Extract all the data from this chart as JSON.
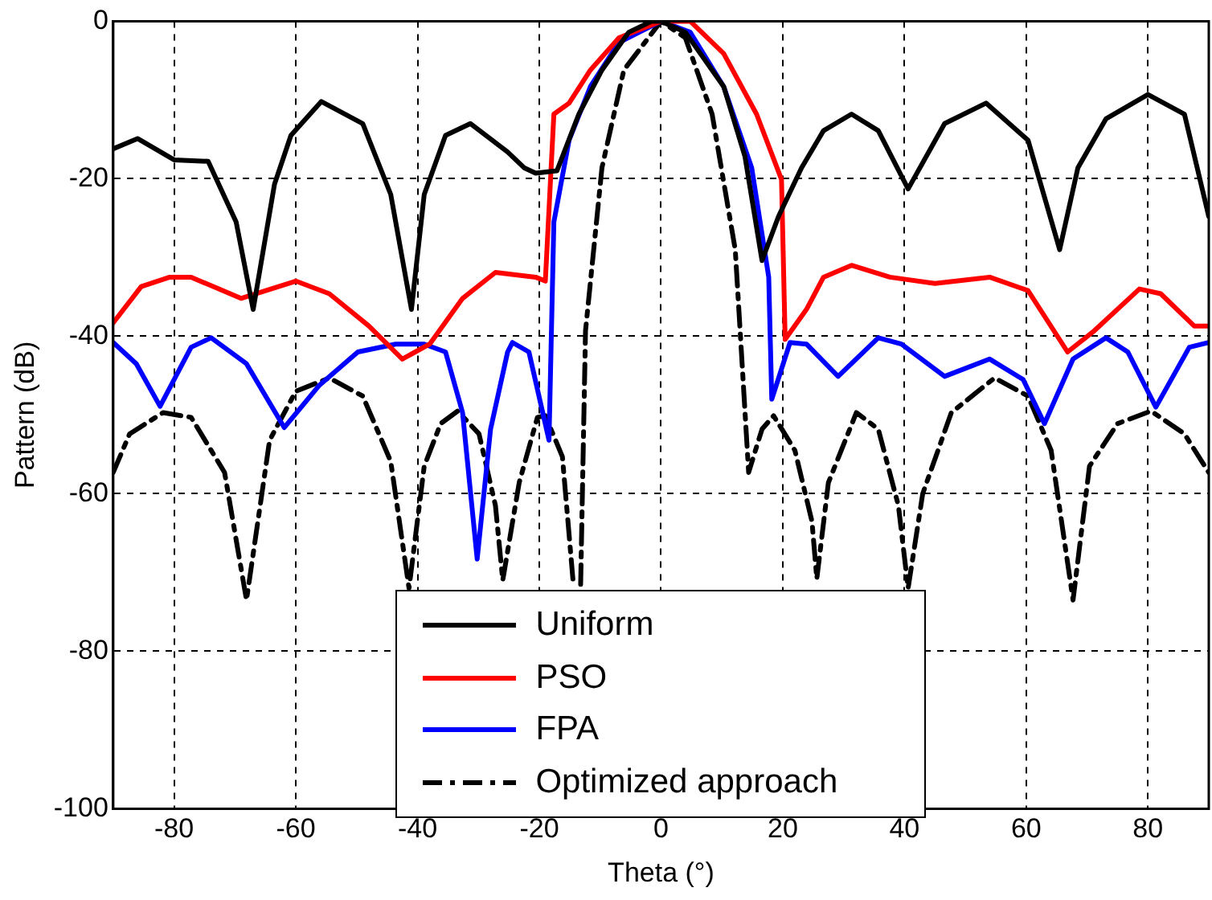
{
  "chart_data": {
    "type": "line",
    "xlabel": "Theta (°)",
    "ylabel": "Pattern (dB)",
    "xlim": [
      -90,
      90
    ],
    "xticks": [
      -80,
      -60,
      -40,
      -20,
      0,
      20,
      40,
      60,
      80
    ],
    "ylim": [
      -100,
      0
    ],
    "yticks": [
      -100,
      -80,
      -60,
      -40,
      -20,
      0
    ],
    "grid": true,
    "legend": "bottom",
    "marker": "none",
    "series": [
      {
        "name": "Uniform",
        "color": "#000000",
        "line_style": "solid",
        "x": [
          -90,
          -86,
          -80,
          -74.4,
          -69.8,
          -67,
          -63.5,
          -60.8,
          -55.8,
          -49,
          -44.4,
          -41,
          -38.9,
          -35.4,
          -31.3,
          -25.2,
          -22.5,
          -20.6,
          -17.1,
          -13.5,
          -9.7,
          -5.3,
          -1.5,
          0,
          4,
          10.3,
          13.8,
          16.6,
          19.3,
          23.1,
          26.7,
          31.3,
          35.7,
          40.6,
          46.6,
          53.4,
          60.3,
          65.5,
          68.5,
          73.1,
          80,
          86,
          90
        ],
        "values": [
          -16.2,
          -14.9,
          -17.6,
          -17.8,
          -25.5,
          -36.6,
          -20.7,
          -14.5,
          -10.2,
          -13,
          -22,
          -36.6,
          -22,
          -14.5,
          -13,
          -16.6,
          -18.6,
          -19.3,
          -19,
          -11.8,
          -6.2,
          -1.4,
          0,
          0,
          -1.4,
          -8.3,
          -17.2,
          -30.4,
          -24.8,
          -18.6,
          -13.9,
          -11.8,
          -13.9,
          -21.3,
          -13,
          -10.4,
          -15.1,
          -29,
          -18.6,
          -12.4,
          -9.3,
          -11.8,
          -24.8
        ]
      },
      {
        "name": "PSO",
        "color": "#ff0000",
        "line_style": "solid",
        "x": [
          -90,
          -85.4,
          -80.7,
          -77.2,
          -69,
          -60,
          -54.5,
          -48,
          -42.5,
          -38,
          -32.6,
          -27.2,
          -20.6,
          -19,
          -17.6,
          -15.1,
          -11.6,
          -6.9,
          0,
          4.8,
          10.3,
          15.7,
          19.8,
          20.4,
          23.9,
          26.7,
          31.3,
          37.6,
          45,
          54,
          60.3,
          66.8,
          71.2,
          78.6,
          82.1,
          87.6,
          90
        ],
        "values": [
          -38.3,
          -33.7,
          -32.5,
          -32.5,
          -35.2,
          -33,
          -34.6,
          -38.7,
          -42.9,
          -41,
          -35.2,
          -31.9,
          -32.5,
          -33,
          -11.8,
          -10.4,
          -6.2,
          -2.1,
          0,
          0,
          -4.1,
          -11.8,
          -20.1,
          -40.4,
          -36.6,
          -32.5,
          -31,
          -32.5,
          -33.3,
          -32.5,
          -34.2,
          -42,
          -39.3,
          -34,
          -34.6,
          -38.7,
          -38.7
        ]
      },
      {
        "name": "FPA",
        "color": "#0000ff",
        "line_style": "solid",
        "x": [
          -90,
          -86.2,
          -82.3,
          -77.2,
          -73.9,
          -68.1,
          -61.9,
          -56.1,
          -49.8,
          -43.6,
          -38.9,
          -35.4,
          -32.6,
          -30.2,
          -28,
          -25.2,
          -24.4,
          -21.7,
          -18.4,
          -17.6,
          -15.1,
          -11.6,
          -6.9,
          0,
          4.8,
          10.3,
          14.9,
          17.7,
          18.2,
          21.2,
          23.9,
          29.1,
          35.7,
          39.5,
          46.6,
          54,
          59.5,
          63,
          67.7,
          73.1,
          76.7,
          81.3,
          86.8,
          90
        ],
        "values": [
          -40.8,
          -43.5,
          -48.9,
          -41.4,
          -40.2,
          -43.5,
          -51.6,
          -46.2,
          -42,
          -41,
          -41,
          -42,
          -49.7,
          -68.3,
          -51.8,
          -42,
          -40.8,
          -42,
          -53.2,
          -25.5,
          -15.1,
          -8.3,
          -2.7,
          0,
          -1.4,
          -8.3,
          -18.6,
          -32.5,
          -48,
          -40.8,
          -41,
          -45.1,
          -40.2,
          -41,
          -45.1,
          -42.9,
          -45.5,
          -51.1,
          -42.9,
          -40.2,
          -42,
          -49,
          -41.4,
          -40.8
        ]
      },
      {
        "name": "Optimized approach",
        "color": "#000000",
        "line_style": "dashed",
        "x": [
          -90,
          -87.3,
          -81.8,
          -77.2,
          -71.7,
          -68.1,
          -64.3,
          -60,
          -54.5,
          -49,
          -44.4,
          -41.4,
          -38.9,
          -36.2,
          -33.4,
          -29.9,
          -27.2,
          -26,
          -23.3,
          -20.3,
          -19,
          -16.2,
          -14.4,
          -13.8,
          -13.2,
          -12.4,
          -9.7,
          -6.1,
          0,
          4,
          8.4,
          12.2,
          14.4,
          16.6,
          18.5,
          22,
          24.8,
          25.6,
          27.5,
          32.1,
          35.7,
          39,
          40.6,
          43,
          47.7,
          54.8,
          60.3,
          64.1,
          67.7,
          70.4,
          75,
          80.5,
          86,
          90
        ],
        "values": [
          -57.3,
          -52.4,
          -49.7,
          -50.3,
          -57.3,
          -73.5,
          -53.2,
          -47,
          -45.3,
          -47.6,
          -55.9,
          -72,
          -56.5,
          -51.1,
          -49.5,
          -52.4,
          -61.5,
          -71,
          -58.6,
          -50.3,
          -50.1,
          -55.3,
          -71.5,
          null,
          -71.5,
          -39.3,
          -18.6,
          -6.2,
          0,
          -2.1,
          -11.8,
          -29,
          -57.3,
          -51.8,
          -50.1,
          -54.5,
          -63.5,
          -70.8,
          -58.6,
          -49.7,
          -51.8,
          -61.5,
          -72,
          -60,
          -49.7,
          -45.3,
          -47.6,
          -54.5,
          -73.5,
          -56.5,
          -51.1,
          -49.5,
          -52.4,
          -57.3
        ]
      }
    ]
  }
}
